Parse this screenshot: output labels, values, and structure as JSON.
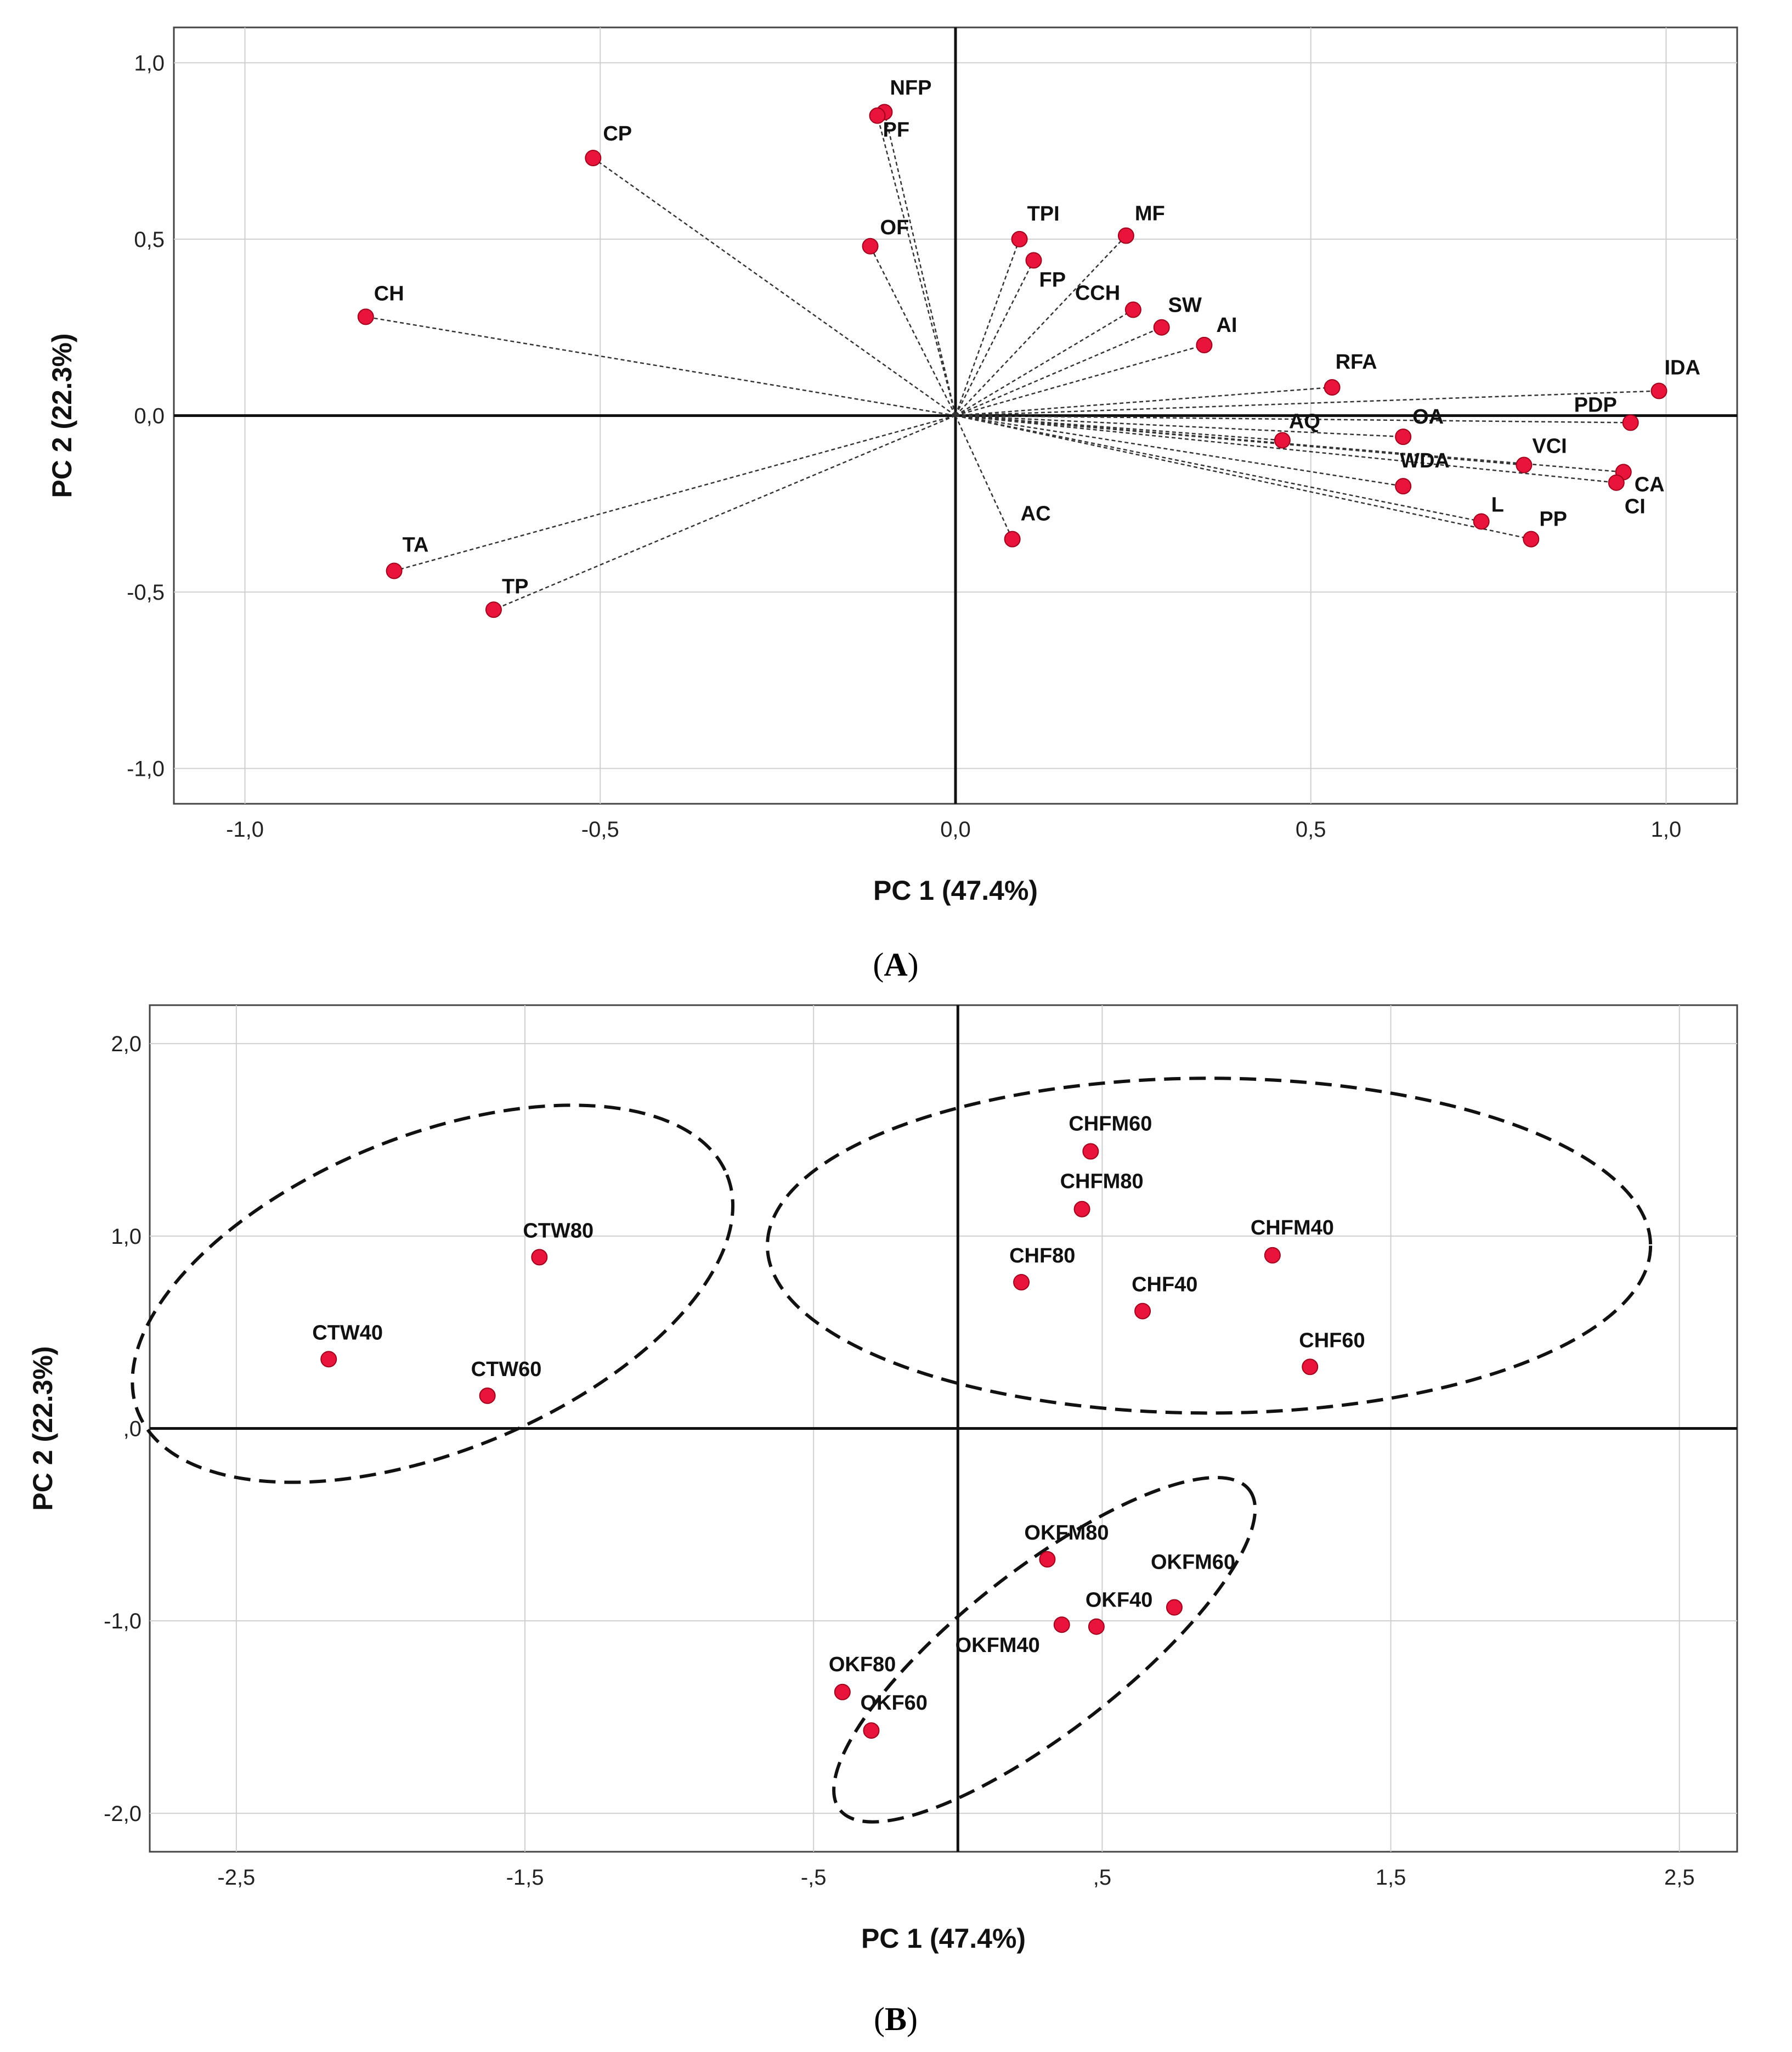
{
  "chart_data": [
    {
      "type": "scatter",
      "subtype": "loading-plot",
      "panel_label": "A",
      "xlabel": "PC 1 (47.4%)",
      "ylabel": "PC 2 (22.3%)",
      "xlim": [
        -1.1,
        1.1
      ],
      "ylim": [
        -1.1,
        1.1
      ],
      "xticks": [
        -1.0,
        -0.5,
        0.0,
        0.5,
        1.0
      ],
      "xtick_labels": [
        "-1,0",
        "-0,5",
        "0,0",
        "0,5",
        "1,0"
      ],
      "yticks": [
        1.0,
        0.5,
        0.0,
        -0.5,
        -1.0
      ],
      "ytick_labels": [
        "1,0",
        "0,5",
        "0,0",
        "-0,5",
        "-1,0"
      ],
      "grid": true,
      "origin_vectors": true,
      "marker_color": "#e8143c",
      "points": [
        {
          "label": "NFP",
          "x": -0.1,
          "y": 0.86
        },
        {
          "label": "PF",
          "x": -0.11,
          "y": 0.85
        },
        {
          "label": "CP",
          "x": -0.51,
          "y": 0.73
        },
        {
          "label": "OF",
          "x": -0.12,
          "y": 0.48
        },
        {
          "label": "TPI",
          "x": 0.09,
          "y": 0.5
        },
        {
          "label": "MF",
          "x": 0.24,
          "y": 0.51
        },
        {
          "label": "FP",
          "x": 0.11,
          "y": 0.44
        },
        {
          "label": "CCH",
          "x": 0.25,
          "y": 0.3
        },
        {
          "label": "SW",
          "x": 0.29,
          "y": 0.25
        },
        {
          "label": "AI",
          "x": 0.35,
          "y": 0.2
        },
        {
          "label": "CH",
          "x": -0.83,
          "y": 0.28
        },
        {
          "label": "RFA",
          "x": 0.53,
          "y": 0.08
        },
        {
          "label": "IDA",
          "x": 0.99,
          "y": 0.07
        },
        {
          "label": "PDP",
          "x": 0.95,
          "y": -0.02
        },
        {
          "label": "AQ",
          "x": 0.46,
          "y": -0.07
        },
        {
          "label": "OA",
          "x": 0.63,
          "y": -0.06
        },
        {
          "label": "VCI",
          "x": 0.8,
          "y": -0.14
        },
        {
          "label": "CA",
          "x": 0.94,
          "y": -0.16
        },
        {
          "label": "WDA",
          "x": 0.63,
          "y": -0.2
        },
        {
          "label": "CI",
          "x": 0.93,
          "y": -0.19
        },
        {
          "label": "L",
          "x": 0.74,
          "y": -0.3
        },
        {
          "label": "PP",
          "x": 0.81,
          "y": -0.35
        },
        {
          "label": "AC",
          "x": 0.08,
          "y": -0.35
        },
        {
          "label": "TA",
          "x": -0.79,
          "y": -0.44
        },
        {
          "label": "TP",
          "x": -0.65,
          "y": -0.55
        }
      ]
    },
    {
      "type": "scatter",
      "subtype": "score-plot",
      "panel_label": "B",
      "xlabel": "PC 1 (47.4%)",
      "ylabel": "PC 2 (22.3%)",
      "xlim": [
        -2.8,
        2.7
      ],
      "ylim": [
        -2.2,
        2.2
      ],
      "xticks": [
        -2.5,
        -1.5,
        -0.5,
        0.5,
        1.5,
        2.5
      ],
      "xtick_labels": [
        "-2,5",
        "-1,5",
        "-,5",
        ",5",
        "1,5",
        "2,5"
      ],
      "yticks": [
        2.0,
        1.0,
        0.0,
        -1.0,
        -2.0
      ],
      "ytick_labels": [
        "2,0",
        "1,0",
        ",0",
        "-1,0",
        "-2,0"
      ],
      "grid": true,
      "marker_color": "#e8143c",
      "points": [
        {
          "label": "CHFM60",
          "x": 0.46,
          "y": 1.44
        },
        {
          "label": "CHFM80",
          "x": 0.43,
          "y": 1.14
        },
        {
          "label": "CHFM40",
          "x": 1.09,
          "y": 0.9
        },
        {
          "label": "CHF80",
          "x": 0.22,
          "y": 0.76
        },
        {
          "label": "CHF40",
          "x": 0.64,
          "y": 0.61
        },
        {
          "label": "CHF60",
          "x": 1.22,
          "y": 0.32
        },
        {
          "label": "CTW80",
          "x": -1.45,
          "y": 0.89
        },
        {
          "label": "CTW40",
          "x": -2.18,
          "y": 0.36
        },
        {
          "label": "CTW60",
          "x": -1.63,
          "y": 0.17
        },
        {
          "label": "OKFM80",
          "x": 0.31,
          "y": -0.68
        },
        {
          "label": "OKFM60",
          "x": 0.75,
          "y": -0.93
        },
        {
          "label": "OKF40",
          "x": 0.48,
          "y": -1.03
        },
        {
          "label": "OKFM40",
          "x": 0.36,
          "y": -1.02
        },
        {
          "label": "OKF80",
          "x": -0.4,
          "y": -1.37
        },
        {
          "label": "OKF60",
          "x": -0.3,
          "y": -1.57
        }
      ],
      "groups": [
        {
          "name": "CTW",
          "center": [
            -1.82,
            0.7
          ],
          "radii": [
            1.1,
            0.82
          ],
          "rotation_deg": -22
        },
        {
          "name": "CHF",
          "center": [
            0.87,
            0.95
          ],
          "radii": [
            1.53,
            0.87
          ],
          "rotation_deg": 0
        },
        {
          "name": "OKF",
          "center": [
            0.3,
            -1.15
          ],
          "radii": [
            0.9,
            0.42
          ],
          "rotation_deg": -38
        }
      ]
    }
  ]
}
